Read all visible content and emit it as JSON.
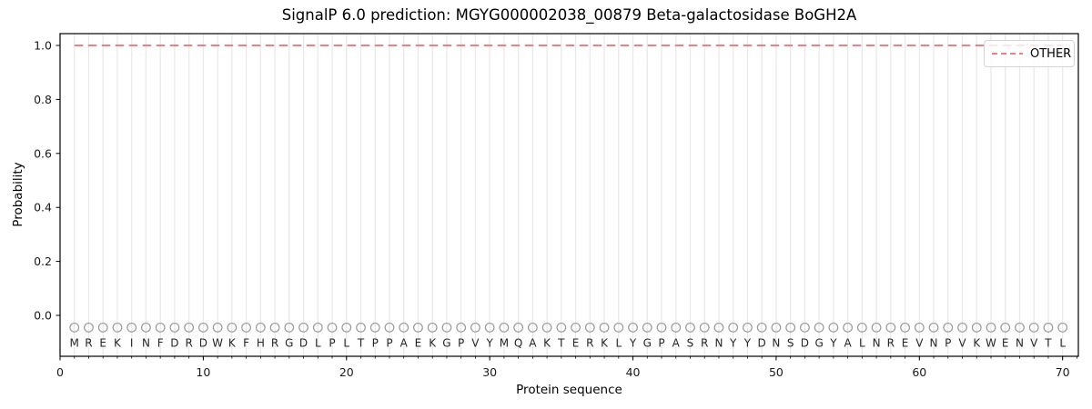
{
  "chart_data": {
    "type": "line",
    "title": "SignalP 6.0 prediction: MGYG000002038_00879 Beta-galactosidase BoGH2A",
    "xlabel": "Protein sequence",
    "ylabel": "Probability",
    "xlim": [
      0,
      71.1
    ],
    "ylim": [
      -0.15,
      1.04
    ],
    "x_major_ticks": [
      0,
      10,
      20,
      30,
      40,
      50,
      60,
      70
    ],
    "x_minor_tick_interval": 1,
    "y_ticks": [
      0.0,
      0.2,
      0.4,
      0.6,
      0.8,
      1.0
    ],
    "grid": {
      "vertical_per_residue": true,
      "color": "#e9e9e9"
    },
    "axis_color": "#000000",
    "legend": {
      "position": "upper-right",
      "entries": [
        {
          "label": "OTHER",
          "color": "#f08080",
          "line_style": "dashed"
        }
      ]
    },
    "series": [
      {
        "name": "OTHER",
        "color": "#f08080",
        "line_style": "dashed",
        "line_width": 2,
        "x_start": 1,
        "values": [
          1,
          1,
          1,
          1,
          1,
          1,
          1,
          1,
          1,
          1,
          1,
          1,
          1,
          1,
          1,
          1,
          1,
          1,
          1,
          1,
          1,
          1,
          1,
          1,
          1,
          1,
          1,
          1,
          1,
          1,
          1,
          1,
          1,
          1,
          1,
          1,
          1,
          1,
          1,
          1,
          1,
          1,
          1,
          1,
          1,
          1,
          1,
          1,
          1,
          1,
          1,
          1,
          1,
          1,
          1,
          1,
          1,
          1,
          1,
          1,
          1,
          1,
          1,
          1,
          1,
          1,
          1,
          1,
          1,
          1
        ]
      }
    ],
    "sequence": "MREKINFDRDWKFHRGDLPLTPPAEKGPVYMQAKTERKLYGPASRNYYDNSDGYALNREVNPVKWENVTL",
    "sequence_marker": {
      "symbol": "open-circle",
      "y": -0.045,
      "color": "#9a9a9a"
    },
    "sequence_letter_color": "#262626"
  }
}
